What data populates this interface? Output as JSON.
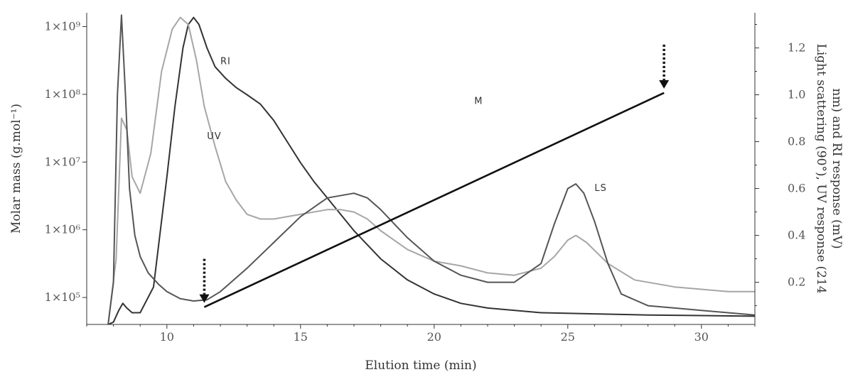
{
  "chart_data": {
    "type": "line",
    "title": "",
    "xlabel": "Elution time (min)",
    "ylabel_left": "Molar mass (g.mol⁻¹)",
    "ylabel_right_lines": [
      "Light scattering (90°), UV response (214",
      "nm) and RI response (mV)"
    ],
    "xlim": [
      7,
      32
    ],
    "xticks": [
      10,
      15,
      20,
      25,
      30
    ],
    "ylim_left": [
      40000,
      1600000000
    ],
    "yscale_left": "log",
    "yticks_left": [
      {
        "value": 100000,
        "label": "1×10⁵"
      },
      {
        "value": 1000000,
        "label": "1×10⁶"
      },
      {
        "value": 10000000,
        "label": "1×10⁷"
      },
      {
        "value": 100000000,
        "label": "1×10⁸"
      },
      {
        "value": 1000000000,
        "label": "1×10⁹"
      }
    ],
    "ylim_right": [
      0.02,
      1.35
    ],
    "yticks_right": [
      {
        "value": 0.2,
        "label": "0.2"
      },
      {
        "value": 0.4,
        "label": "0.4"
      },
      {
        "value": 0.6,
        "label": "0.6"
      },
      {
        "value": 0.8,
        "label": "0.8"
      },
      {
        "value": 1.0,
        "label": "1.0"
      },
      {
        "value": 1.2,
        "label": "1.2"
      }
    ],
    "grid": false,
    "legend": "none",
    "series": [
      {
        "name": "RI",
        "axis": "right",
        "color": "#333333",
        "x": [
          7.8,
          8.0,
          8.2,
          8.35,
          8.5,
          8.7,
          9.0,
          9.5,
          10.0,
          10.3,
          10.6,
          10.8,
          11.0,
          11.2,
          11.5,
          11.8,
          12.2,
          12.6,
          13.0,
          13.5,
          14.0,
          14.5,
          15.0,
          15.5,
          16.0,
          16.5,
          17.0,
          17.5,
          18.0,
          19.0,
          20.0,
          21.0,
          22.0,
          24.0,
          26.0,
          28.0,
          30.0,
          32.0
        ],
        "y": [
          0.02,
          0.03,
          0.08,
          0.11,
          0.09,
          0.07,
          0.07,
          0.18,
          0.65,
          0.95,
          1.2,
          1.3,
          1.33,
          1.3,
          1.2,
          1.12,
          1.07,
          1.03,
          1.0,
          0.96,
          0.89,
          0.8,
          0.71,
          0.63,
          0.56,
          0.49,
          0.42,
          0.36,
          0.3,
          0.21,
          0.15,
          0.11,
          0.09,
          0.07,
          0.065,
          0.06,
          0.058,
          0.055
        ]
      },
      {
        "name": "UV",
        "axis": "right",
        "color": "#a6a6a6",
        "x": [
          7.8,
          8.1,
          8.3,
          8.5,
          8.7,
          9.0,
          9.4,
          9.8,
          10.2,
          10.5,
          10.8,
          11.1,
          11.4,
          11.8,
          12.2,
          12.6,
          13.0,
          13.5,
          14.0,
          15.0,
          16.0,
          16.5,
          17.0,
          17.5,
          18.0,
          19.0,
          20.0,
          21.0,
          22.0,
          23.0,
          24.0,
          24.5,
          25.0,
          25.3,
          25.7,
          26.5,
          27.5,
          29.0,
          30.0,
          31.0,
          32.0
        ],
        "y": [
          0.02,
          0.3,
          0.9,
          0.85,
          0.65,
          0.58,
          0.75,
          1.1,
          1.28,
          1.33,
          1.3,
          1.15,
          0.95,
          0.78,
          0.63,
          0.55,
          0.49,
          0.47,
          0.47,
          0.49,
          0.51,
          0.51,
          0.5,
          0.47,
          0.42,
          0.34,
          0.29,
          0.27,
          0.24,
          0.23,
          0.26,
          0.31,
          0.38,
          0.4,
          0.37,
          0.28,
          0.21,
          0.18,
          0.17,
          0.16,
          0.16
        ]
      },
      {
        "name": "LS",
        "axis": "right",
        "color": "#555555",
        "x": [
          7.8,
          8.0,
          8.15,
          8.3,
          8.45,
          8.6,
          8.8,
          9.0,
          9.3,
          9.7,
          10.0,
          10.5,
          11.0,
          11.5,
          12.0,
          13.0,
          14.0,
          15.0,
          16.0,
          17.0,
          17.5,
          18.0,
          19.0,
          20.0,
          21.0,
          22.0,
          23.0,
          24.0,
          24.5,
          25.0,
          25.3,
          25.6,
          26.0,
          26.5,
          27.0,
          28.0,
          29.0,
          30.0,
          31.0,
          32.0
        ],
        "y": [
          0.02,
          0.2,
          1.0,
          1.34,
          1.0,
          0.6,
          0.4,
          0.31,
          0.24,
          0.19,
          0.16,
          0.13,
          0.12,
          0.125,
          0.16,
          0.26,
          0.37,
          0.48,
          0.56,
          0.58,
          0.56,
          0.51,
          0.39,
          0.29,
          0.23,
          0.2,
          0.2,
          0.28,
          0.45,
          0.6,
          0.62,
          0.58,
          0.46,
          0.28,
          0.15,
          0.1,
          0.09,
          0.08,
          0.07,
          0.06
        ]
      },
      {
        "name": "M",
        "axis": "left",
        "color": "#111111",
        "x": [
          11.4,
          28.6
        ],
        "y": [
          72000,
          105000000
        ]
      }
    ],
    "annotations": [
      {
        "text": "RI",
        "x": 12.0,
        "axis": "right",
        "y": 1.13
      },
      {
        "text": "UV",
        "x": 11.5,
        "axis": "right",
        "y": 0.81
      },
      {
        "text": "M",
        "x": 21.5,
        "axis": "right",
        "y": 0.96
      },
      {
        "text": "LS",
        "x": 26.0,
        "axis": "right",
        "y": 0.59
      }
    ],
    "markers": [
      {
        "type": "dotted-down-arrow",
        "x": 11.4,
        "axis": "left",
        "y": 72000
      },
      {
        "type": "dotted-down-arrow",
        "x": 28.6,
        "axis": "left",
        "y": 105000000
      }
    ]
  }
}
